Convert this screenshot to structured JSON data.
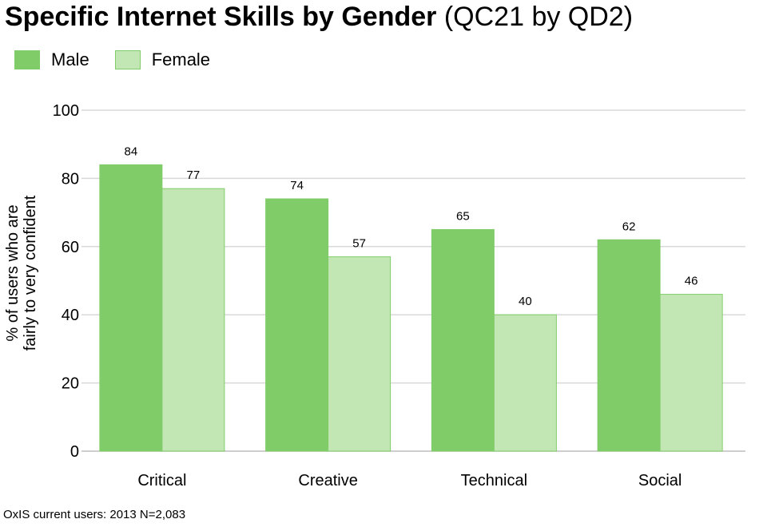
{
  "chart_data": {
    "type": "bar",
    "title_main": "Specific Internet Skills by Gender",
    "title_sub": "(QC21 by QD2)",
    "ylabel_line1": "% of users who are",
    "ylabel_line2": "fairly to very confident",
    "xlabel": "",
    "ylim": [
      0,
      100
    ],
    "yticks": [
      0,
      20,
      40,
      60,
      80,
      100
    ],
    "grid": true,
    "legend_position": "top-left",
    "categories": [
      "Critical",
      "Creative",
      "Technical",
      "Social"
    ],
    "series": [
      {
        "name": "Male",
        "values": [
          84,
          74,
          65,
          62
        ],
        "color": "#80cc68",
        "stroke": "#80cc68"
      },
      {
        "name": "Female",
        "values": [
          77,
          57,
          40,
          46
        ],
        "color": "#c2e7b5",
        "stroke": "#80cc68"
      }
    ]
  },
  "source_note": "OxIS current users: 2013 N=2,083"
}
